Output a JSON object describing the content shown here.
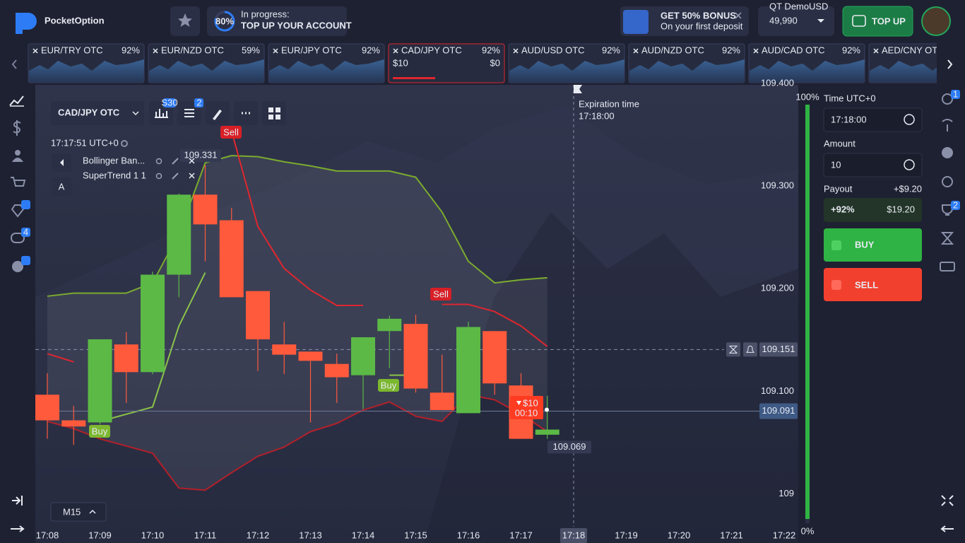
{
  "header": {
    "logo": "PocketOption",
    "progress": {
      "percent": "80%",
      "status": "In progress:",
      "task": "TOP UP YOUR ACCOUNT"
    },
    "bonus": {
      "title": "GET 50% BONUS",
      "subtitle": "On your first deposit"
    },
    "account": {
      "type": "QT Demo",
      "currency": "USD",
      "balance": "49,990"
    },
    "top_up": "TOP UP"
  },
  "assets": [
    {
      "name": "EUR/TRY OTC",
      "payout": "92%"
    },
    {
      "name": "EUR/NZD OTC",
      "payout": "59%"
    },
    {
      "name": "EUR/JPY OTC",
      "payout": "92%"
    },
    {
      "name": "CAD/JPY OTC",
      "payout": "92%",
      "amount": "$10",
      "profit": "$0",
      "active": true
    },
    {
      "name": "AUD/USD OTC",
      "payout": "92%"
    },
    {
      "name": "AUD/NZD OTC",
      "payout": "92%"
    },
    {
      "name": "AUD/CAD OTC",
      "payout": "92%"
    },
    {
      "name": "AED/CNY OTC"
    }
  ],
  "toolbar": {
    "asset": "CAD/JPY OTC",
    "chart_badge": "S30",
    "settings_badge": "2",
    "clock": "17:17:51 UTC+0",
    "indicators": [
      "Bollinger Ban...",
      "SuperTrend 1 1"
    ],
    "text_tool": "A",
    "timeframe": "M15"
  },
  "sidebar": {
    "messages_badge": "4"
  },
  "right_sidebar": {
    "history_badge": "1",
    "trophy_badge": "2"
  },
  "trade_panel": {
    "time_label": "Time UTC+0",
    "time": "17:18:00",
    "amount_label": "Amount",
    "amount": "10",
    "payout_label": "Payout",
    "payout_profit": "+$9.20",
    "payout_percent": "+92%",
    "payout_total": "$19.20",
    "buy": "BUY",
    "sell": "SELL"
  },
  "chart_data": {
    "type": "candlestick",
    "categories": [
      "17:08",
      null,
      "17:09",
      null,
      "17:10",
      null,
      "17:11",
      null,
      "17:12",
      null,
      "17:13",
      null,
      "17:14",
      null,
      "17:15",
      null,
      "17:16",
      null,
      "17:17",
      null,
      "17:18",
      null,
      "17:19",
      null,
      "17:20",
      null,
      "17:21",
      null,
      "17:22"
    ],
    "open": [
      109.107,
      109.082,
      109.08,
      109.156,
      109.129,
      109.224,
      109.302,
      109.277,
      109.208,
      109.156,
      109.149,
      109.137,
      109.126,
      109.169,
      109.176,
      109.109,
      109.089,
      109.169,
      109.116,
      109.068,
      null,
      null,
      null,
      null,
      null,
      null,
      null,
      null,
      null
    ],
    "high": [
      109.128,
      109.096,
      109.161,
      109.168,
      109.227,
      109.303,
      109.331,
      109.289,
      109.208,
      109.178,
      109.149,
      109.147,
      109.163,
      109.184,
      109.185,
      109.146,
      109.178,
      109.169,
      109.128,
      109.106,
      null,
      null,
      null,
      null,
      null,
      null,
      null,
      null,
      null
    ],
    "low": [
      109.064,
      109.058,
      109.078,
      109.099,
      109.127,
      109.202,
      109.237,
      109.202,
      109.13,
      109.127,
      109.08,
      109.099,
      109.093,
      109.133,
      109.109,
      109.092,
      109.089,
      109.107,
      109.064,
      109.064,
      null,
      null,
      null,
      null,
      null,
      null,
      null,
      null,
      null
    ],
    "close": [
      109.082,
      109.076,
      109.161,
      109.129,
      109.224,
      109.302,
      109.273,
      109.202,
      109.161,
      109.146,
      109.14,
      109.124,
      109.163,
      109.181,
      109.113,
      109.092,
      109.173,
      109.118,
      109.064,
      109.073,
      null,
      null,
      null,
      null,
      null,
      null,
      null,
      null,
      null
    ],
    "up_color": "#5cb946",
    "down_color": "#ff5a3c",
    "bands": {
      "upper": [
        109.203,
        109.206,
        109.206,
        109.206,
        109.216,
        109.264,
        109.333,
        109.34,
        109.339,
        109.334,
        109.33,
        109.325,
        109.325,
        109.325,
        109.319,
        109.285,
        109.237,
        109.216,
        109.219,
        109.221,
        null,
        null,
        null,
        null,
        null,
        null,
        null,
        null,
        null
      ],
      "lower": [
        109.081,
        109.074,
        109.064,
        109.057,
        109.05,
        109.016,
        109.014,
        109.031,
        109.047,
        109.056,
        109.071,
        109.079,
        109.092,
        109.1,
        109.086,
        109.081,
        109.107,
        109.102,
        109.088,
        109.071,
        null,
        null,
        null,
        null,
        null,
        null,
        null,
        null,
        null
      ],
      "upper_color": "#7bab2e",
      "lower_color": "#b3202a"
    },
    "supertrend": {
      "up": [
        null,
        null,
        109.081,
        109.088,
        109.095,
        109.174,
        109.226,
        null,
        null,
        null,
        null,
        null,
        null,
        109.126,
        109.126,
        null,
        null,
        null,
        null,
        null,
        null,
        null,
        null,
        null,
        null,
        null,
        null,
        null,
        null
      ],
      "down": [
        109.147,
        109.139,
        null,
        null,
        null,
        null,
        null,
        109.364,
        109.271,
        109.23,
        109.209,
        109.194,
        109.194,
        null,
        null,
        109.195,
        109.195,
        109.188,
        109.174,
        109.154,
        null,
        null,
        null,
        null,
        null,
        null,
        null,
        null,
        null
      ],
      "up_color": "#8bc34a",
      "down_color": "#e0262e"
    },
    "signals": [
      "Sell",
      "Buy",
      "Sell",
      "Buy"
    ],
    "ylim": [
      108.979,
      109.409
    ],
    "yticks": [
      109,
      {
        "value": 109.1,
        "label": "109.100"
      },
      {
        "value": 109.2,
        "label": "109.200"
      },
      {
        "value": 109.3,
        "label": "109.300"
      },
      {
        "value": 109.4,
        "label": "109.400"
      }
    ],
    "current_price": 109.091,
    "level_price": 109.151,
    "low_price": 109.069,
    "max_price": 109.331,
    "expiration": {
      "label": "Expiration time",
      "time": "17:18:00"
    },
    "trade": {
      "amount": "$10",
      "timer": "00:10"
    },
    "percent_scale": {
      "top": "100%",
      "bottom": "0%"
    }
  }
}
